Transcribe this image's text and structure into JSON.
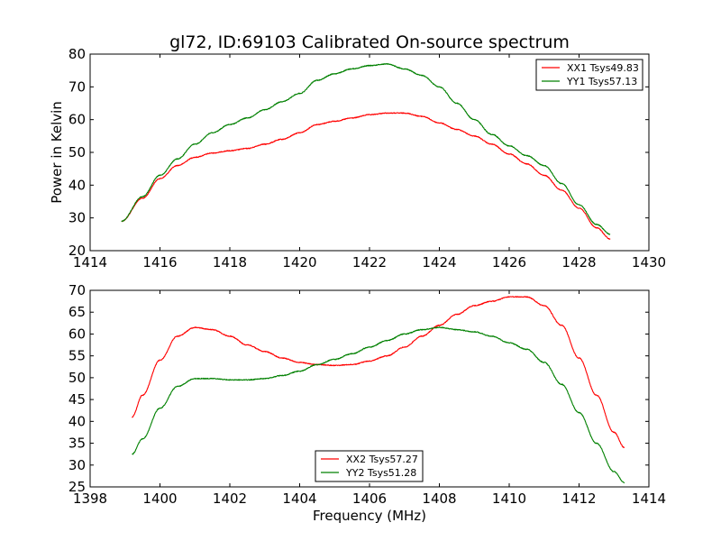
{
  "chart_data": [
    {
      "type": "line",
      "title": "gl72, ID:69103 Calibrated On-source spectrum",
      "xlabel": "",
      "ylabel": "Power in Kelvin",
      "xlim": [
        1414,
        1430
      ],
      "ylim": [
        20,
        80
      ],
      "xticks": [
        1414,
        1416,
        1418,
        1420,
        1422,
        1424,
        1426,
        1428,
        1430
      ],
      "yticks": [
        20,
        30,
        40,
        50,
        60,
        70,
        80
      ],
      "legend_position": "top-right",
      "series": [
        {
          "name": "XX1 Tsys49.83",
          "color": "#ff0000",
          "x": [
            1414.9,
            1415.5,
            1416.0,
            1416.5,
            1417.0,
            1417.5,
            1418.0,
            1418.5,
            1419.0,
            1419.5,
            1420.0,
            1420.5,
            1421.0,
            1421.5,
            1422.0,
            1422.5,
            1423.0,
            1423.5,
            1424.0,
            1424.5,
            1425.0,
            1425.5,
            1426.0,
            1426.5,
            1427.0,
            1427.5,
            1428.0,
            1428.5,
            1428.9
          ],
          "y": [
            29,
            36,
            42,
            46,
            48.5,
            49.8,
            50.5,
            51.2,
            52.5,
            54,
            56,
            58.5,
            59.5,
            60.5,
            61.5,
            62,
            62,
            61,
            59,
            57,
            55,
            52.5,
            49.5,
            46.5,
            43,
            38.5,
            33,
            27,
            23.5
          ]
        },
        {
          "name": "YY1 Tsys57.13",
          "color": "#008000",
          "x": [
            1414.9,
            1415.5,
            1416.0,
            1416.5,
            1417.0,
            1417.5,
            1418.0,
            1418.5,
            1419.0,
            1419.5,
            1420.0,
            1420.5,
            1421.0,
            1421.5,
            1422.0,
            1422.5,
            1423.0,
            1423.5,
            1424.0,
            1424.5,
            1425.0,
            1425.5,
            1426.0,
            1426.5,
            1427.0,
            1427.5,
            1428.0,
            1428.5,
            1428.9
          ],
          "y": [
            29,
            36.5,
            43,
            48,
            52.5,
            56,
            58.5,
            60.5,
            63,
            65.5,
            68,
            72,
            74,
            75.5,
            76.5,
            77,
            75.5,
            73.5,
            70,
            65,
            60,
            55.5,
            52,
            49,
            46,
            40.5,
            34,
            28,
            25
          ]
        }
      ]
    },
    {
      "type": "line",
      "title": "",
      "xlabel": "Frequency (MHz)",
      "ylabel": "",
      "xlim": [
        1398,
        1414
      ],
      "ylim": [
        25,
        70
      ],
      "xticks": [
        1398,
        1400,
        1402,
        1404,
        1406,
        1408,
        1410,
        1412,
        1414
      ],
      "yticks": [
        25,
        30,
        35,
        40,
        45,
        50,
        55,
        60,
        65,
        70
      ],
      "legend_position": "bottom-center",
      "series": [
        {
          "name": "XX2 Tsys57.27",
          "color": "#ff0000",
          "x": [
            1399.2,
            1399.5,
            1400.0,
            1400.5,
            1401.0,
            1401.5,
            1402.0,
            1402.5,
            1403.0,
            1403.5,
            1404.0,
            1404.5,
            1405.0,
            1405.5,
            1406.0,
            1406.5,
            1407.0,
            1407.5,
            1408.0,
            1408.5,
            1409.0,
            1409.5,
            1410.0,
            1410.5,
            1411.0,
            1411.5,
            1412.0,
            1412.5,
            1413.0,
            1413.3
          ],
          "y": [
            41,
            46,
            54,
            59.5,
            61.5,
            61,
            59.5,
            57.5,
            56,
            54.5,
            53.5,
            53,
            52.8,
            53,
            53.8,
            55,
            57,
            59.5,
            62,
            64.5,
            66.5,
            67.5,
            68.5,
            68.5,
            66.5,
            62,
            54.5,
            46,
            37.5,
            34
          ]
        },
        {
          "name": "YY2 Tsys51.28",
          "color": "#008000",
          "x": [
            1399.2,
            1399.5,
            1400.0,
            1400.5,
            1401.0,
            1401.5,
            1402.0,
            1402.5,
            1403.0,
            1403.5,
            1404.0,
            1404.5,
            1405.0,
            1405.5,
            1406.0,
            1406.5,
            1407.0,
            1407.5,
            1408.0,
            1408.5,
            1409.0,
            1409.5,
            1410.0,
            1410.5,
            1411.0,
            1411.5,
            1412.0,
            1412.5,
            1413.0,
            1413.3
          ],
          "y": [
            32.5,
            36,
            43,
            48,
            49.8,
            49.8,
            49.5,
            49.5,
            49.8,
            50.5,
            51.5,
            53,
            54.2,
            55.5,
            57,
            58.5,
            60,
            61,
            61.5,
            61,
            60.5,
            59.5,
            58,
            56.5,
            53.5,
            48.5,
            42,
            35,
            28.5,
            26
          ]
        }
      ]
    }
  ]
}
